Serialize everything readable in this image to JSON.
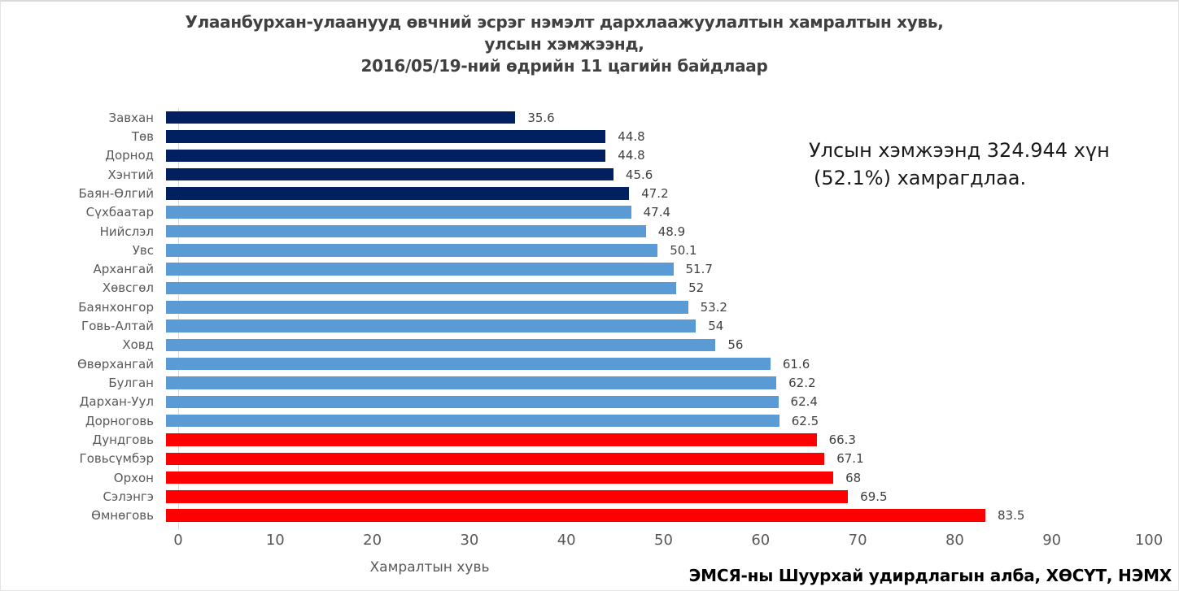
{
  "title": {
    "line1": "Улаанбурхан-улаанууд өвчний эсрэг нэмэлт дархлаажуулалтын хамралтын хувь,",
    "line2": "улсын хэмжээнд,",
    "line3": "2016/05/19-ний өдрийн 11 цагийн байдлаар"
  },
  "annotation": {
    "line1": "Улсын хэмжээнд 324.944 хүн",
    "line2": "(52.1%) хамрагдлаа."
  },
  "footer": "ЭМСЯ-ны Шуурхай удирдлагын алба, ХӨСҮТ, НЭМХ",
  "colors": {
    "navy": "#002060",
    "blue": "#5B9BD5",
    "red": "#FF0000",
    "axis_line": "#d9d9d9",
    "label_gray": "#595959",
    "value_gray": "#404040"
  },
  "chart_data": {
    "type": "bar",
    "orientation": "horizontal",
    "title": "Улаанбурхан-улаанууд өвчний эсрэг нэмэлт дархлаажуулалтын хамралтын хувь, улсын хэмжээнд, 2016/05/19-ний өдрийн 11 цагийн байдлаар",
    "xlabel": "Хамралтын хувь",
    "ylabel": "",
    "xlim": [
      0,
      100
    ],
    "xticks": [
      0,
      10,
      20,
      30,
      40,
      50,
      60,
      70,
      80,
      90,
      100
    ],
    "grid": false,
    "legend": false,
    "categories": [
      "Завхан",
      "Төв",
      "Дорнод",
      "Хэнтий",
      "Баян-Өлгий",
      "Сүхбаатар",
      "Нийслэл",
      "Увс",
      "Архангай",
      "Хөвсгөл",
      "Баянхонгор",
      "Говь-Алтай",
      "Ховд",
      "Өвөрхангай",
      "Булган",
      "Дархан-Уул",
      "Дорноговь",
      "Дундговь",
      "Говьсүмбэр",
      "Орхон",
      "Сэлэнгэ",
      "Өмнөговь"
    ],
    "values": [
      35.6,
      44.8,
      44.8,
      45.6,
      47.2,
      47.4,
      48.9,
      50.1,
      51.7,
      52,
      53.2,
      54,
      56,
      61.6,
      62.2,
      62.4,
      62.5,
      66.3,
      67.1,
      68,
      69.5,
      83.5
    ],
    "bar_colors": [
      "#002060",
      "#002060",
      "#002060",
      "#002060",
      "#002060",
      "#5B9BD5",
      "#5B9BD5",
      "#5B9BD5",
      "#5B9BD5",
      "#5B9BD5",
      "#5B9BD5",
      "#5B9BD5",
      "#5B9BD5",
      "#5B9BD5",
      "#5B9BD5",
      "#5B9BD5",
      "#5B9BD5",
      "#FF0000",
      "#FF0000",
      "#FF0000",
      "#FF0000",
      "#FF0000"
    ]
  }
}
